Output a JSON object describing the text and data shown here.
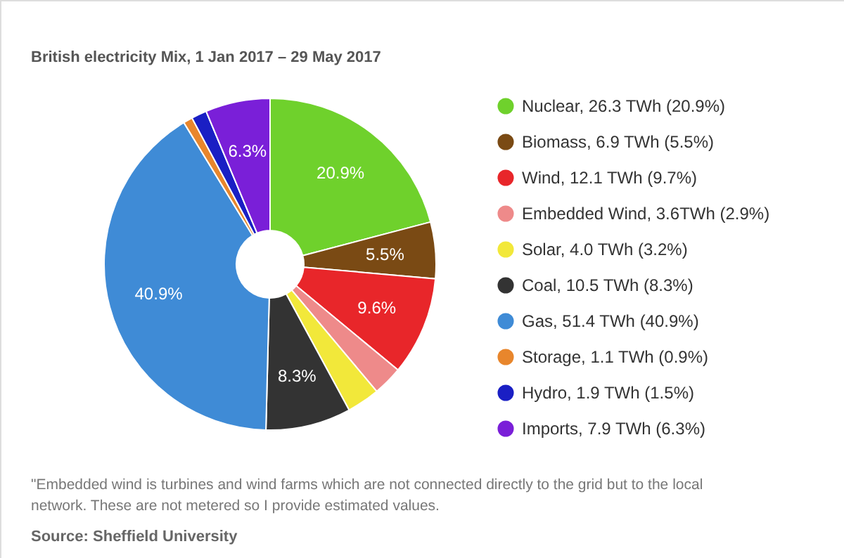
{
  "chart_data": {
    "type": "donut",
    "title": "British electricity Mix, 1 Jan 2017 – 29 May 2017",
    "categories": [
      "Nuclear, 26.3 TWh (20.9%)",
      "Biomass, 6.9 TWh (5.5%)",
      "Wind, 12.1 TWh (9.7%)",
      "Embedded Wind, 3.6TWh (2.9%)",
      "Solar, 4.0 TWh (3.2%)",
      "Coal, 10.5 TWh (8.3%)",
      "Gas, 51.4 TWh (40.9%)",
      "Storage, 1.1 TWh (0.9%)",
      "Hydro, 1.9 TWh (1.5%)",
      "Imports, 7.9 TWh (6.3%)"
    ],
    "values": [
      20.9,
      5.5,
      9.6,
      2.9,
      3.2,
      8.3,
      40.9,
      0.9,
      1.5,
      6.3
    ],
    "colors": [
      "#6fd12c",
      "#7a4a14",
      "#e8262a",
      "#ee8a8a",
      "#f2e83a",
      "#333333",
      "#3f8bd6",
      "#e8862c",
      "#1a1fc4",
      "#7a1fd8"
    ],
    "value_labels": [
      "20.9%",
      "5.5%",
      "9.6%",
      null,
      null,
      "8.3%",
      "40.9%",
      null,
      null,
      "6.3%"
    ],
    "legend": "right",
    "annotations": [
      "\"Embedded wind is turbines and wind farms which are not connected directly to the grid but to the local network. These are not metered so I provide estimated values.",
      "Source: Sheffield University"
    ]
  }
}
